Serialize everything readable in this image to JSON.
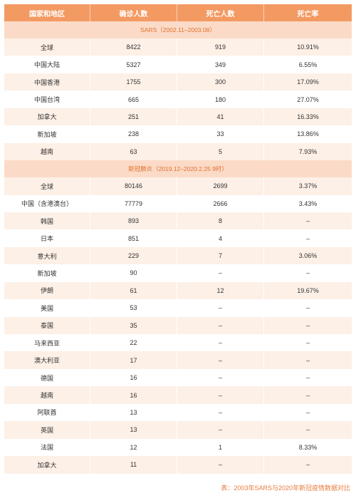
{
  "headers": [
    "国家和地区",
    "确诊人数",
    "死亡人数",
    "死亡率"
  ],
  "section1": "SARS（2002.11–2003.08）",
  "sars_rows": [
    [
      "全球",
      "8422",
      "919",
      "10.91%"
    ],
    [
      "中国大陆",
      "5327",
      "349",
      "6.55%"
    ],
    [
      "中国香港",
      "1755",
      "300",
      "17.09%"
    ],
    [
      "中国台湾",
      "665",
      "180",
      "27.07%"
    ],
    [
      "加拿大",
      "251",
      "41",
      "16.33%"
    ],
    [
      "新加坡",
      "238",
      "33",
      "13.86%"
    ],
    [
      "越南",
      "63",
      "5",
      "7.93%"
    ]
  ],
  "section2": "新冠肺炎（2019.12–2020.2.25 9时）",
  "covid_rows": [
    [
      "全球",
      "80146",
      "2699",
      "3.37%"
    ],
    [
      "中国（含港澳台）",
      "77779",
      "2666",
      "3.43%"
    ],
    [
      "韩国",
      "893",
      "8",
      "–"
    ],
    [
      "日本",
      "851",
      "4",
      "–"
    ],
    [
      "意大利",
      "229",
      "7",
      "3.06%"
    ],
    [
      "新加坡",
      "90",
      "–",
      "–"
    ],
    [
      "伊朗",
      "61",
      "12",
      "19.67%"
    ],
    [
      "美国",
      "53",
      "–",
      "–"
    ],
    [
      "泰国",
      "35",
      "–",
      "–"
    ],
    [
      "马来西亚",
      "22",
      "–",
      "–"
    ],
    [
      "澳大利亚",
      "17",
      "–",
      "–"
    ],
    [
      "德国",
      "16",
      "–",
      "–"
    ],
    [
      "越南",
      "16",
      "–",
      "–"
    ],
    [
      "阿联酋",
      "13",
      "–",
      "–"
    ],
    [
      "英国",
      "13",
      "–",
      "–"
    ],
    [
      "法国",
      "12",
      "1",
      "8.33%"
    ],
    [
      "加拿大",
      "11",
      "–",
      "–"
    ]
  ],
  "caption": {
    "label": "表：",
    "text": "2003年SARS与2020年新冠疫情数据对比"
  }
}
